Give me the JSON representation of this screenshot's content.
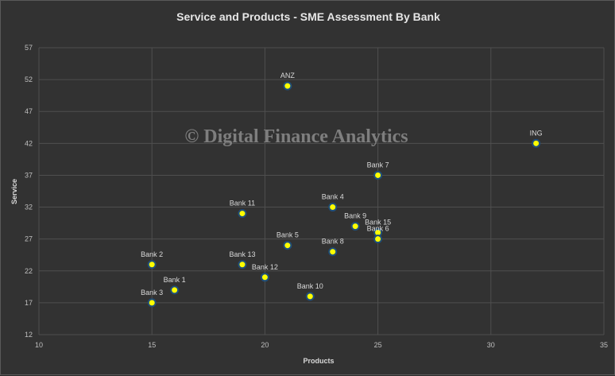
{
  "chart_data": {
    "type": "scatter",
    "title": "Service and Products - SME Assessment By Bank",
    "xlabel": "Products",
    "ylabel": "Service",
    "xlim": [
      10,
      35
    ],
    "ylim": [
      12,
      57
    ],
    "xticks": [
      10,
      15,
      20,
      25,
      30,
      35
    ],
    "yticks": [
      12,
      17,
      22,
      27,
      32,
      37,
      42,
      47,
      52,
      57
    ],
    "grid": true,
    "legend": "none",
    "marker_color": "#ffff00",
    "marker_edge_color": "#1f4e79",
    "points": [
      {
        "label": "ANZ",
        "x": 21,
        "y": 51
      },
      {
        "label": "ING",
        "x": 32,
        "y": 42
      },
      {
        "label": "Bank 7",
        "x": 25,
        "y": 37
      },
      {
        "label": "Bank 4",
        "x": 23,
        "y": 32
      },
      {
        "label": "Bank 11",
        "x": 19,
        "y": 31
      },
      {
        "label": "Bank 9",
        "x": 24,
        "y": 29
      },
      {
        "label": "Bank 15",
        "x": 25,
        "y": 28
      },
      {
        "label": "Bank 6",
        "x": 25,
        "y": 27
      },
      {
        "label": "Bank 5",
        "x": 21,
        "y": 26
      },
      {
        "label": "Bank 8",
        "x": 23,
        "y": 25
      },
      {
        "label": "Bank 2",
        "x": 15,
        "y": 23
      },
      {
        "label": "Bank 13",
        "x": 19,
        "y": 23
      },
      {
        "label": "Bank 12",
        "x": 20,
        "y": 21
      },
      {
        "label": "Bank 1",
        "x": 16,
        "y": 19
      },
      {
        "label": "Bank 10",
        "x": 22,
        "y": 18
      },
      {
        "label": "Bank 3",
        "x": 15,
        "y": 17
      }
    ]
  },
  "watermark": "© Digital Finance Analytics"
}
